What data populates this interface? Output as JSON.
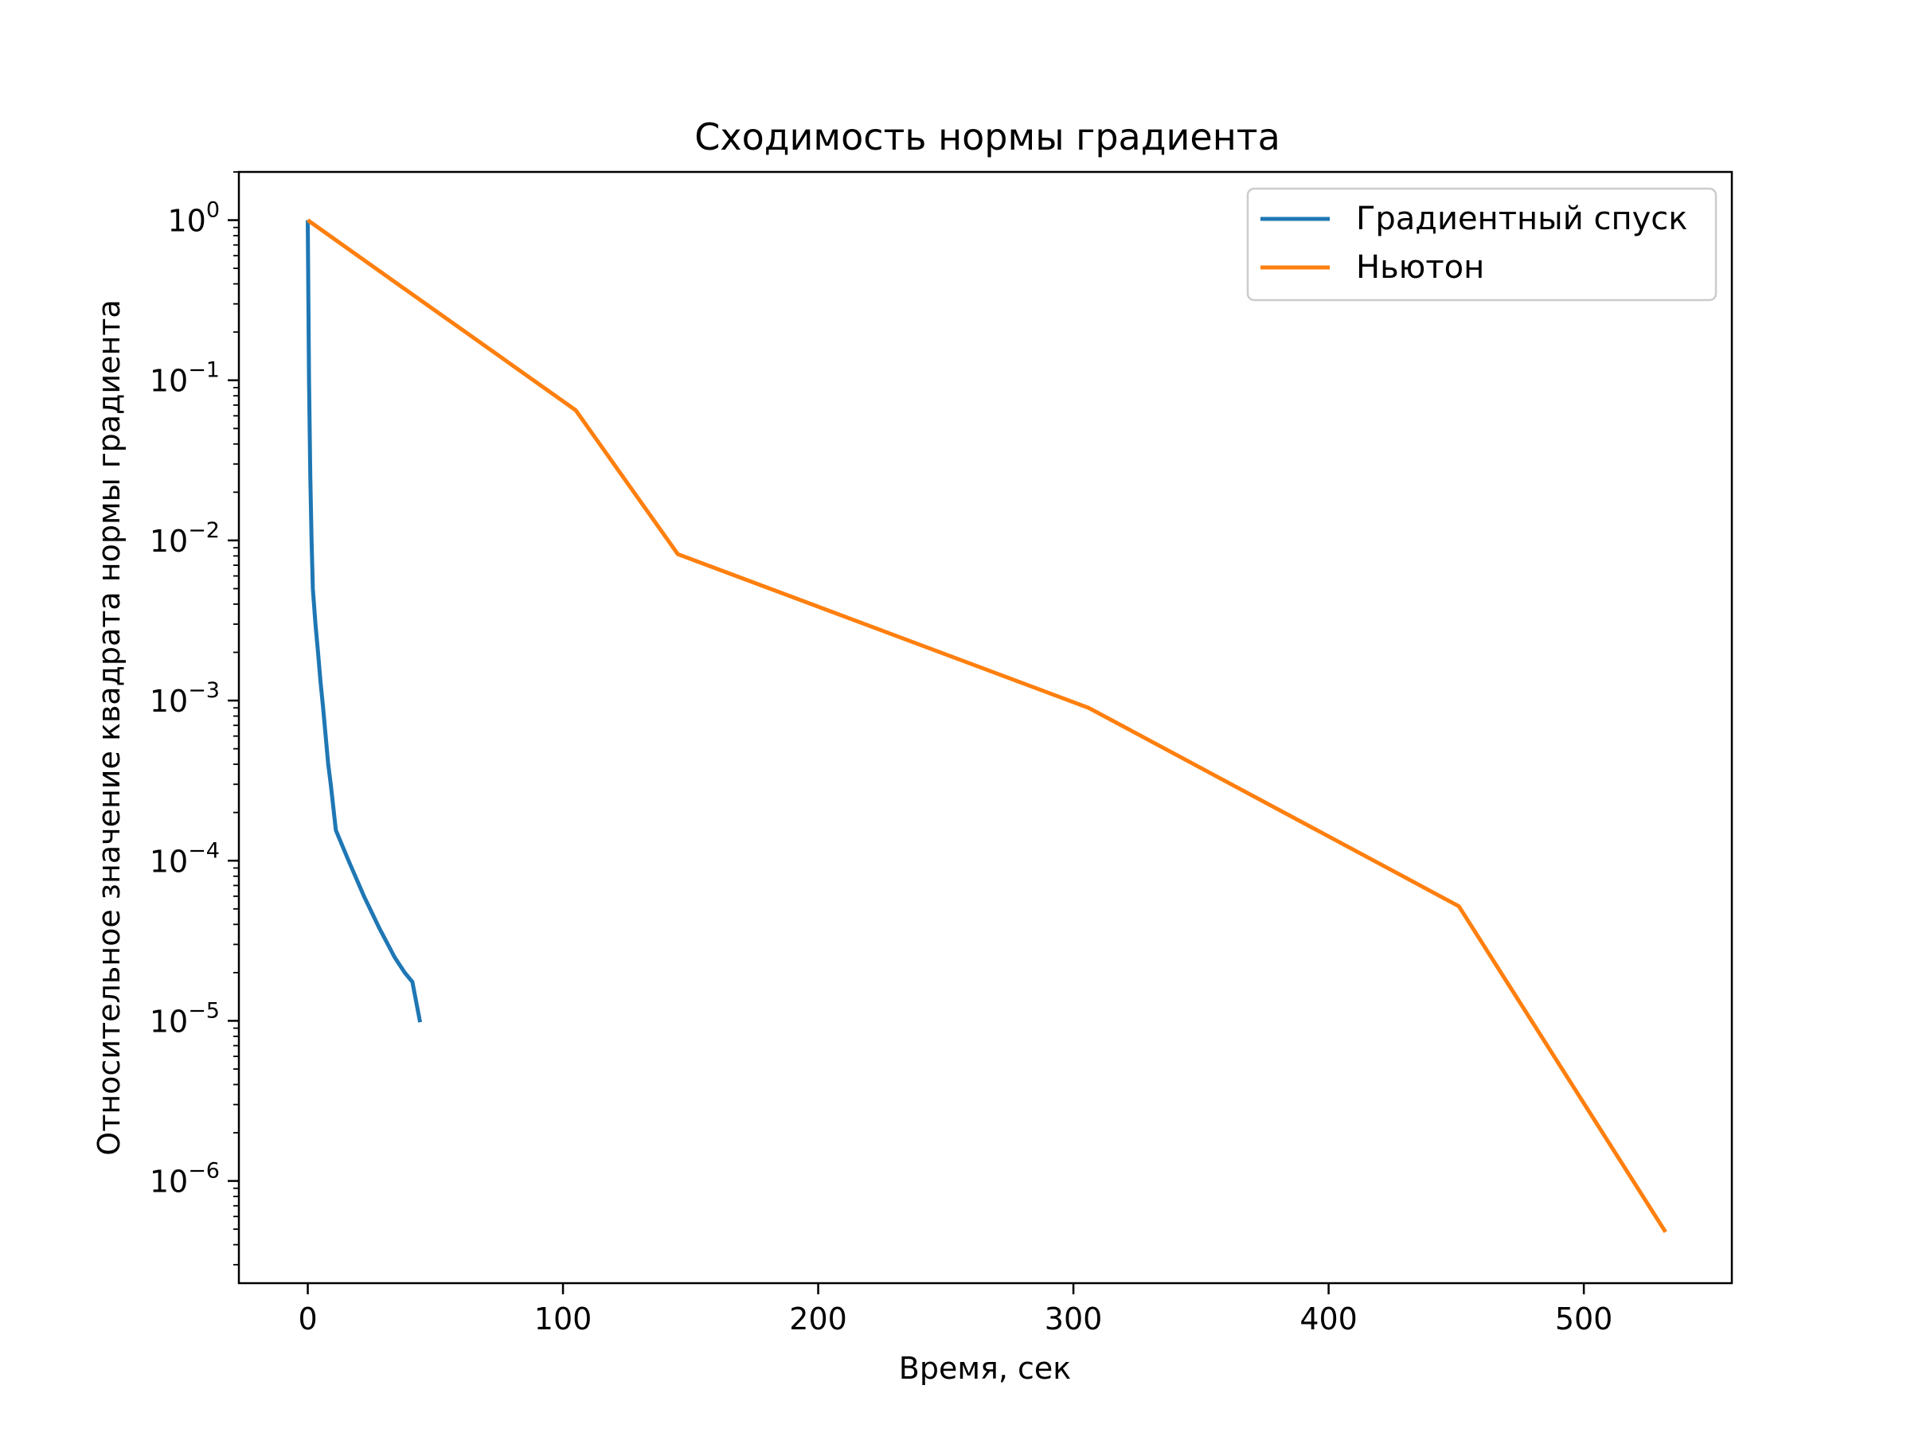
{
  "chart_data": {
    "type": "line",
    "title": "Сходимость нормы градиента",
    "xlabel": "Время, сек",
    "ylabel": "Относительное значение квадрата нормы градиента",
    "xscale": "linear",
    "yscale": "log",
    "xlim": [
      -27,
      558
    ],
    "ylim": [
      2.3e-07,
      2.0
    ],
    "xticks": [
      0,
      100,
      200,
      300,
      400,
      500
    ],
    "xtick_labels": [
      "0",
      "100",
      "200",
      "300",
      "400",
      "500"
    ],
    "yticks": [
      1,
      0.1,
      0.01,
      0.001,
      0.0001,
      1e-05,
      1e-06
    ],
    "ytick_labels": [
      {
        "base": "10",
        "exp": "0"
      },
      {
        "base": "10",
        "exp": "−1"
      },
      {
        "base": "10",
        "exp": "−2"
      },
      {
        "base": "10",
        "exp": "−3"
      },
      {
        "base": "10",
        "exp": "−4"
      },
      {
        "base": "10",
        "exp": "−5"
      },
      {
        "base": "10",
        "exp": "−6"
      }
    ],
    "grid": false,
    "legend_position": "top-right",
    "series": [
      {
        "name": "Градиентный спуск",
        "color": "#1f77b4",
        "x": [
          0,
          0.5,
          1,
          1.5,
          2,
          3,
          4,
          5,
          6,
          7,
          8,
          9,
          11,
          16,
          22,
          28,
          34,
          38,
          41,
          44
        ],
        "y": [
          1.0,
          0.1,
          0.025,
          0.01,
          0.005,
          0.003,
          0.002,
          0.0013,
          0.0009,
          0.0006,
          0.0004,
          0.0003,
          0.000155,
          0.0001,
          6e-05,
          3.8e-05,
          2.5e-05,
          2e-05,
          1.75e-05,
          9.8e-06
        ]
      },
      {
        "name": "Ньютон",
        "color": "#ff7f0e",
        "x": [
          0,
          105,
          145,
          306,
          451,
          532
        ],
        "y": [
          1.0,
          0.065,
          0.0082,
          0.0009,
          5.2e-05,
          4.8e-07
        ]
      }
    ]
  }
}
